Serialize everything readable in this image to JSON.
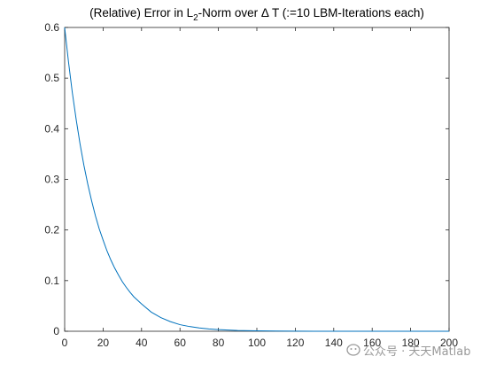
{
  "chart_data": {
    "type": "line",
    "title": {
      "prefix": "(Relative) Error in L",
      "subscript": "2",
      "suffix": "-Norm over Δ T (:=10 LBM-Iterations each)"
    },
    "xlabel": "",
    "ylabel": "",
    "xlim": [
      0,
      200
    ],
    "ylim": [
      0,
      0.6
    ],
    "xticks": [
      0,
      20,
      40,
      60,
      80,
      100,
      120,
      140,
      160,
      180,
      200
    ],
    "yticks": [
      0,
      0.1,
      0.2,
      0.3,
      0.4,
      0.5,
      0.6
    ],
    "grid": false,
    "series": [
      {
        "color": "#0072BD",
        "x": [
          0,
          2,
          4,
          6,
          8,
          10,
          12,
          14,
          16,
          18,
          20,
          22,
          24,
          26,
          28,
          30,
          32,
          34,
          36,
          38,
          40,
          45,
          50,
          55,
          60,
          65,
          70,
          75,
          80,
          90,
          100,
          110,
          120,
          130,
          140,
          150,
          160,
          170,
          180,
          190,
          200
        ],
        "y": [
          0.6,
          0.532,
          0.471,
          0.418,
          0.37,
          0.328,
          0.291,
          0.258,
          0.228,
          0.202,
          0.18,
          0.159,
          0.141,
          0.125,
          0.111,
          0.098,
          0.087,
          0.077,
          0.068,
          0.061,
          0.054,
          0.038,
          0.027,
          0.019,
          0.013,
          0.0093,
          0.0066,
          0.0046,
          0.0033,
          0.0016,
          0.0008,
          0.0004,
          0.0002,
          0.0001,
          5e-05,
          3e-05,
          1e-05,
          1e-05,
          0,
          0,
          0
        ]
      }
    ]
  },
  "watermark": {
    "icon": "wechat-icon",
    "text": "公众号 · 天天Matlab"
  }
}
